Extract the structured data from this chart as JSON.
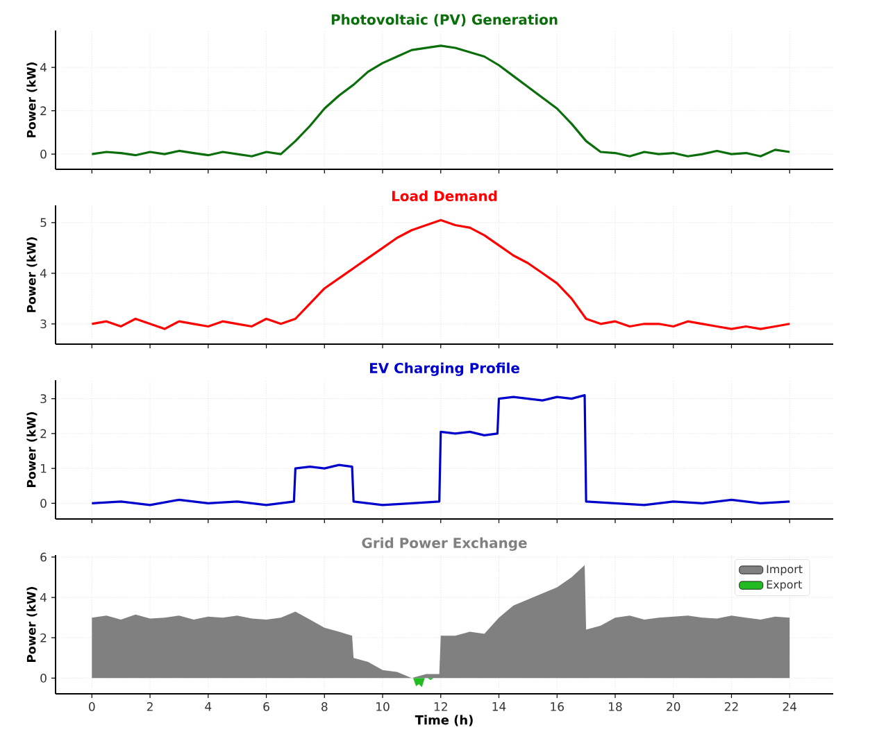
{
  "chart_data": [
    {
      "type": "line",
      "title": "Photovoltaic (PV) Generation",
      "ylabel": "Power (kW)",
      "tick_labels": "y",
      "grid": true,
      "xlim": [
        -1.25,
        25.5
      ],
      "ylim": [
        -0.7,
        5.7
      ],
      "xticks": [
        0,
        2,
        4,
        6,
        8,
        10,
        12,
        14,
        16,
        18,
        20,
        22,
        24
      ],
      "yticks": [
        0,
        2,
        4
      ],
      "x": [
        0,
        0.5,
        1,
        1.5,
        2,
        2.5,
        3,
        3.5,
        4,
        4.5,
        5,
        5.5,
        6,
        6.5,
        7,
        7.5,
        8,
        8.5,
        9,
        9.5,
        10,
        10.5,
        11,
        11.5,
        12,
        12.5,
        13,
        13.5,
        14,
        14.5,
        15,
        15.5,
        16,
        16.5,
        17,
        17.5,
        18,
        18.5,
        19,
        19.5,
        20,
        20.5,
        21,
        21.5,
        22,
        22.5,
        23,
        23.5,
        24
      ],
      "series": [
        {
          "color": "#0a6e0a",
          "values": [
            0.0,
            0.1,
            0.05,
            -0.05,
            0.1,
            0.0,
            0.15,
            0.05,
            -0.05,
            0.1,
            0.0,
            -0.1,
            0.1,
            0.0,
            0.6,
            1.3,
            2.1,
            2.7,
            3.2,
            3.8,
            4.2,
            4.5,
            4.8,
            4.9,
            5.0,
            4.9,
            4.7,
            4.5,
            4.1,
            3.6,
            3.1,
            2.6,
            2.1,
            1.4,
            0.6,
            0.1,
            0.05,
            -0.1,
            0.1,
            0.0,
            0.05,
            -0.1,
            0.0,
            0.15,
            0.0,
            0.05,
            -0.1,
            0.2,
            0.1
          ]
        }
      ]
    },
    {
      "type": "line",
      "title": "Load Demand",
      "ylabel": "Power (kW)",
      "tick_labels": "y",
      "grid": true,
      "xlim": [
        -1.25,
        25.5
      ],
      "ylim": [
        2.6,
        5.34
      ],
      "xticks": [
        0,
        2,
        4,
        6,
        8,
        10,
        12,
        14,
        16,
        18,
        20,
        22,
        24
      ],
      "yticks": [
        3,
        4,
        5
      ],
      "x": [
        0,
        0.5,
        1,
        1.5,
        2,
        2.5,
        3,
        3.5,
        4,
        4.5,
        5,
        5.5,
        6,
        6.5,
        7,
        7.5,
        8,
        8.5,
        9,
        9.5,
        10,
        10.5,
        11,
        11.5,
        12,
        12.5,
        13,
        13.5,
        14,
        14.5,
        15,
        15.5,
        16,
        16.5,
        17,
        17.5,
        18,
        18.5,
        19,
        19.5,
        20,
        20.5,
        21,
        21.5,
        22,
        22.5,
        23,
        23.5,
        24
      ],
      "series": [
        {
          "color": "#ff0000",
          "values": [
            3.0,
            3.05,
            2.95,
            3.1,
            3.0,
            2.9,
            3.05,
            3.0,
            2.95,
            3.05,
            3.0,
            2.95,
            3.1,
            3.0,
            3.1,
            3.4,
            3.7,
            3.9,
            4.1,
            4.3,
            4.5,
            4.7,
            4.85,
            4.95,
            5.05,
            4.95,
            4.9,
            4.75,
            4.55,
            4.35,
            4.2,
            4.0,
            3.8,
            3.5,
            3.1,
            3.0,
            3.05,
            2.95,
            3.0,
            3.0,
            2.95,
            3.05,
            3.0,
            2.95,
            2.9,
            2.95,
            2.9,
            2.95,
            3.0
          ]
        }
      ]
    },
    {
      "type": "line",
      "title": "EV Charging Profile",
      "ylabel": "Power (kW)",
      "tick_labels": "y",
      "grid": true,
      "xlim": [
        -1.25,
        25.5
      ],
      "ylim": [
        -0.45,
        3.53
      ],
      "xticks": [
        0,
        2,
        4,
        6,
        8,
        10,
        12,
        14,
        16,
        18,
        20,
        22,
        24
      ],
      "yticks": [
        0,
        1,
        2,
        3
      ],
      "x": [
        0,
        1,
        2,
        3,
        4,
        5,
        6,
        6.95,
        7,
        7.5,
        8,
        8.5,
        8.95,
        9,
        10,
        11,
        11.95,
        12,
        12.5,
        13,
        13.5,
        13.95,
        14,
        14.5,
        15,
        15.5,
        16,
        16.5,
        16.95,
        17,
        18,
        19,
        20,
        21,
        22,
        23,
        24
      ],
      "series": [
        {
          "color": "#0000cc",
          "values": [
            0,
            0.05,
            -0.05,
            0.1,
            0,
            0.05,
            -0.05,
            0.05,
            1.0,
            1.05,
            1.0,
            1.1,
            1.05,
            0.05,
            -0.05,
            0,
            0.05,
            2.05,
            2.0,
            2.05,
            1.95,
            2.0,
            3.0,
            3.05,
            3.0,
            2.95,
            3.05,
            3.0,
            3.1,
            0.05,
            0,
            -0.05,
            0.05,
            0,
            0.1,
            0,
            0.05
          ]
        }
      ]
    },
    {
      "type": "area",
      "title": "Grid Power Exchange",
      "xlabel": "Time (h)",
      "ylabel": "Power (kW)",
      "grid": true,
      "legend": "top right",
      "xlim": [
        -1.25,
        25.5
      ],
      "ylim": [
        -0.78,
        6.1
      ],
      "xticks": [
        0,
        2,
        4,
        6,
        8,
        10,
        12,
        14,
        16,
        18,
        20,
        22,
        24
      ],
      "yticks": [
        0,
        2,
        4,
        6
      ],
      "series": [
        {
          "name": "Import",
          "color": "#808080",
          "x": [
            0,
            0.5,
            1,
            1.5,
            2,
            2.5,
            3,
            3.5,
            4,
            4.5,
            5,
            5.5,
            6,
            6.5,
            7,
            7.5,
            8,
            8.5,
            8.95,
            9,
            9.5,
            10,
            10.5,
            11,
            11.5,
            11.95,
            12,
            12.5,
            13,
            13.5,
            14,
            14.5,
            15,
            15.5,
            16,
            16.5,
            16.95,
            17,
            17.5,
            18,
            18.5,
            19,
            19.5,
            20,
            20.5,
            21,
            21.5,
            22,
            22.5,
            23,
            23.5,
            24
          ],
          "values": [
            3.0,
            3.1,
            2.9,
            3.15,
            2.95,
            3.0,
            3.1,
            2.9,
            3.05,
            3.0,
            3.1,
            2.95,
            2.9,
            3.0,
            3.3,
            2.9,
            2.5,
            2.3,
            2.1,
            1.0,
            0.8,
            0.4,
            0.3,
            0,
            0.2,
            0.2,
            2.1,
            2.1,
            2.3,
            2.2,
            3.0,
            3.6,
            3.9,
            4.2,
            4.5,
            5.0,
            5.6,
            2.4,
            2.6,
            3.0,
            3.1,
            2.9,
            3.0,
            3.05,
            3.1,
            3.0,
            2.95,
            3.1,
            3.0,
            2.9,
            3.05,
            3.0
          ]
        },
        {
          "name": "Export",
          "color": "#22bb22",
          "x": [
            11.05,
            11.15,
            11.25,
            11.35,
            11.45,
            11.55,
            11.65,
            11.75
          ],
          "values": [
            0,
            -0.4,
            -0.3,
            -0.45,
            0,
            0,
            -0.1,
            0
          ]
        }
      ]
    }
  ]
}
